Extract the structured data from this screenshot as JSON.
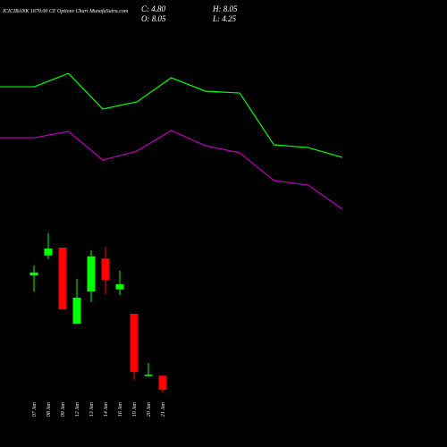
{
  "chart_data": [
    {
      "type": "line",
      "ylim": [
        0,
        100
      ],
      "series": [
        {
          "color": "#00ff00",
          "values": [
            80.5,
            80.5,
            88.4,
            67.4,
            71.6,
            85.8,
            77.9,
            76.8,
            46.3,
            44.7,
            38.9
          ]
        },
        {
          "color": "#c000c0",
          "values": [
            50.5,
            50.5,
            54.2,
            37.4,
            42.6,
            54.7,
            45.8,
            41.6,
            25.3,
            22.6,
            8.4
          ]
        }
      ]
    },
    {
      "type": "candlestick",
      "title": "ICICIBANK 1670.00 CE Options Chart MunafaSutra.com",
      "info": [
        "C: 4.80",
        "H: 8.05",
        "O: 8.05",
        "L: 4.25"
      ],
      "ylim": [
        4,
        41
      ],
      "up_color": "#00ff00",
      "down_color": "#ff0000",
      "categories": [
        "07 Jan",
        "08 Jan",
        "09 Jan",
        "12 Jan",
        "13 Jan",
        "14 Jan",
        "16 Jan",
        "19 Jan",
        "20 Jan",
        "21 Jan"
      ],
      "open": [
        31.1,
        35.7,
        37.5,
        20.0,
        27.4,
        35.0,
        27.9,
        22.3,
        8.1,
        8.05
      ],
      "high": [
        33.4,
        40.8,
        37.5,
        30.3,
        36.9,
        37.7,
        32.2,
        22.3,
        11.0,
        8.05
      ],
      "low": [
        27.4,
        34.8,
        23.3,
        20.0,
        25.0,
        26.8,
        26.6,
        7.1,
        7.9,
        4.25
      ],
      "close": [
        31.8,
        37.3,
        23.3,
        26.0,
        35.5,
        30.1,
        29.1,
        8.9,
        8.3,
        4.8
      ]
    }
  ]
}
